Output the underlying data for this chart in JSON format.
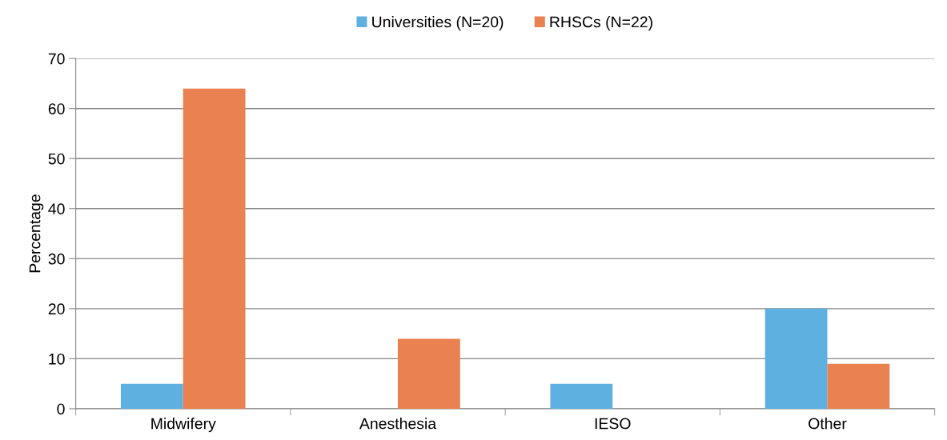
{
  "chart_data": {
    "type": "bar",
    "ylabel": "Percentage",
    "categories": [
      "Midwifery",
      "Anesthesia",
      "IESO",
      "Other"
    ],
    "series": [
      {
        "name": "Universities (N=20)",
        "color": "#5eb0e1",
        "values": [
          5,
          0,
          5,
          20
        ]
      },
      {
        "name": "RHSCs (N=22)",
        "color": "#ea8150",
        "values": [
          64,
          14,
          0,
          9
        ]
      }
    ],
    "ylim": [
      0,
      70
    ],
    "yticks": [
      0,
      10,
      20,
      30,
      40,
      50,
      60,
      70
    ],
    "grid": "y",
    "legend": "top"
  }
}
